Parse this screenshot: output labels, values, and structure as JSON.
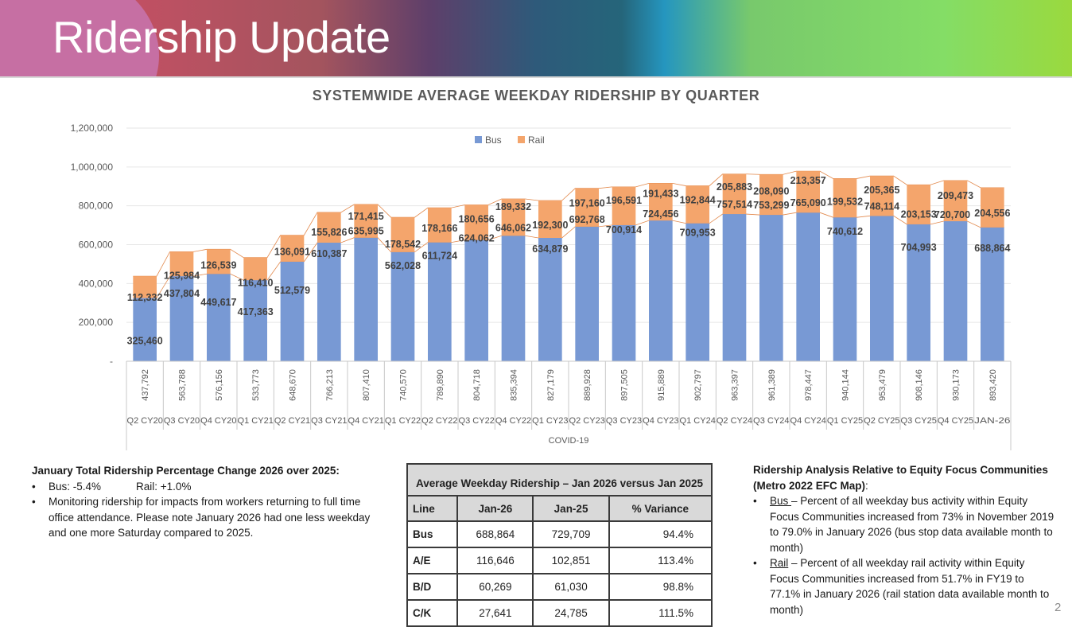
{
  "header": {
    "title": "Ridership Update"
  },
  "chart_data": {
    "type": "bar",
    "stacked": true,
    "title": "SYSTEMWIDE AVERAGE WEEKDAY RIDERSHIP BY QUARTER",
    "xlabel": "",
    "ylabel": "",
    "x_group_label": "COVID-19",
    "ylim": [
      0,
      1200000
    ],
    "yticks": [
      0,
      200000,
      400000,
      600000,
      800000,
      1000000,
      1200000
    ],
    "ytick_labels": [
      "-",
      "200,000",
      "400,000",
      "600,000",
      "800,000",
      "1,000,000",
      "1,200,000"
    ],
    "grid": true,
    "legend_position": "top-center",
    "categories": [
      "Q2 CY20",
      "Q3 CY20",
      "Q4 CY20",
      "Q1 CY21",
      "Q2 CY21",
      "Q3 CY21",
      "Q4 CY21",
      "Q1 CY22",
      "Q2 CY22",
      "Q3 CY22",
      "Q4 CY22",
      "Q1 CY23",
      "Q2 CY23",
      "Q3 CY23",
      "Q4 CY23",
      "Q1 CY24",
      "Q2 CY24",
      "Q3 CY24",
      "Q4 CY24",
      "Q1 CY25",
      "Q2 CY25",
      "Q3 CY25",
      "Q4 CY25",
      "JAN-26"
    ],
    "series": [
      {
        "name": "Bus",
        "color": "#7899d4",
        "values": [
          325460,
          437804,
          449617,
          417363,
          512579,
          610387,
          635995,
          562028,
          611724,
          624062,
          646062,
          634879,
          692768,
          700914,
          724456,
          709953,
          757514,
          753299,
          765090,
          740612,
          748114,
          704993,
          720700,
          688864
        ],
        "labels": [
          "325,460",
          "437,804",
          "449,617",
          "417,363",
          "512,579",
          "610,387",
          "635,995",
          "562,028",
          "611,724",
          "624,062",
          "646,062",
          "634,879",
          "692,768",
          "700,914",
          "724,456",
          "709,953",
          "757,514",
          "753,299",
          "765,090",
          "740,612",
          "748,114",
          "704,993",
          "720,700",
          "688,864"
        ]
      },
      {
        "name": "Rail",
        "color": "#f4a56c",
        "values": [
          112332,
          125984,
          126539,
          116410,
          136091,
          155826,
          171415,
          178542,
          178166,
          180656,
          189332,
          192300,
          197160,
          196591,
          191433,
          192844,
          205883,
          208090,
          213357,
          199532,
          205365,
          203153,
          209473,
          204556
        ],
        "labels": [
          "112,332",
          "125,984",
          "126,539",
          "116,410",
          "136,091",
          "155,826",
          "171,415",
          "178,542",
          "178,166",
          "180,656",
          "189,332",
          "192,300",
          "197,160",
          "196,591",
          "191,433",
          "192,844",
          "205,883",
          "208,090",
          "213,357",
          "199,532",
          "205,365",
          "203,153",
          "209,473",
          "204,556"
        ]
      }
    ],
    "totals": [
      437792,
      563788,
      576156,
      533773,
      648670,
      766213,
      807410,
      740570,
      789890,
      804718,
      835394,
      827179,
      889928,
      897505,
      915889,
      902797,
      963397,
      961389,
      978447,
      940144,
      953479,
      908146,
      930173,
      893420
    ],
    "total_labels": [
      "437,792",
      "563,788",
      "576,156",
      "533,773",
      "648,670",
      "766,213",
      "807,410",
      "740,570",
      "789,890",
      "804,718",
      "835,394",
      "827,179",
      "889,928",
      "897,505",
      "915,889",
      "902,797",
      "963,397",
      "961,389",
      "978,447",
      "940,144",
      "953,479",
      "908,146",
      "930,173",
      "893,420"
    ]
  },
  "summary": {
    "heading": "January Total Ridership Percentage Change 2026 over 2025:",
    "bus_change": "Bus:  -5.4%",
    "rail_change": "Rail:  +1.0%",
    "note": "Monitoring ridership for impacts from workers  returning to full time office attendance. Please note January 2026 had one less weekday and one more Saturday compared to 2025."
  },
  "table": {
    "caption": "Average Weekday Ridership – Jan 2026 versus Jan 2025",
    "columns": [
      "Line",
      "Jan-26",
      "Jan-25",
      "% Variance"
    ],
    "rows": [
      [
        "Bus",
        "688,864",
        "729,709",
        "94.4%"
      ],
      [
        "A/E",
        "116,646",
        "102,851",
        "113.4%"
      ],
      [
        "B/D",
        "60,269",
        "61,030",
        "98.8%"
      ],
      [
        "C/K",
        "27,641",
        "24,785",
        "111.5%"
      ]
    ]
  },
  "equity": {
    "heading": "Ridership Analysis Relative to Equity Focus Communities (Metro 2022 EFC Map)",
    "heading_colon": ":",
    "bus_label": "Bus ",
    "bus_text": "– Percent of all weekday bus activity within Equity Focus Communities increased from 73% in November 2019 to 79.0% in January 2026 (bus stop data available month to month)",
    "rail_label": "Rail",
    "rail_text": " – Percent of all weekday rail activity within Equity Focus Communities increased from 51.7% in FY19 to 77.1% in January 2026 (rail station data available month to month)"
  },
  "page_number": "2"
}
